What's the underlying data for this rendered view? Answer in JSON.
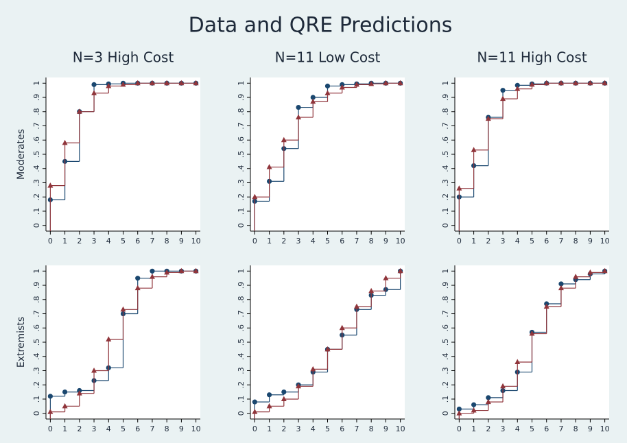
{
  "title": "Data and QRE Predictions",
  "chart_data": [
    {
      "type": "step",
      "title": "N=3 High Cost",
      "ylabel": "Moderates",
      "x": [
        0,
        1,
        2,
        3,
        4,
        5,
        6,
        7,
        8,
        9,
        10
      ],
      "xlim": [
        -0.3,
        10.3
      ],
      "xticks": [
        0,
        1,
        2,
        3,
        4,
        5,
        6,
        7,
        8,
        9,
        10
      ],
      "ylim": [
        -0.04,
        1.04
      ],
      "yticks": [
        0,
        {
          "value": 0.1,
          "label": ".1"
        },
        {
          "value": 0.2,
          "label": ".2"
        },
        {
          "value": 0.3,
          "label": ".3"
        },
        {
          "value": 0.4,
          "label": ".4"
        },
        {
          "value": 0.5,
          "label": ".5"
        },
        {
          "value": 0.6,
          "label": ".6"
        },
        {
          "value": 0.7,
          "label": ".7"
        },
        {
          "value": 0.8,
          "label": ".8"
        },
        {
          "value": 0.9,
          "label": ".9"
        },
        1
      ],
      "series": [
        {
          "color": "#1a476f",
          "marker": "circle",
          "values": [
            0.18,
            0.45,
            0.8,
            0.99,
            0.995,
            1,
            1,
            1,
            1,
            1,
            1
          ]
        },
        {
          "color": "#90353b",
          "marker": "triangle",
          "values": [
            0.28,
            0.58,
            0.8,
            0.93,
            0.98,
            0.99,
            1,
            1,
            1,
            1,
            1
          ]
        }
      ]
    },
    {
      "type": "step",
      "title": "N=11 Low Cost",
      "x": [
        0,
        1,
        2,
        3,
        4,
        5,
        6,
        7,
        8,
        9,
        10
      ],
      "xlim": [
        -0.3,
        10.3
      ],
      "xticks": [
        0,
        1,
        2,
        3,
        4,
        5,
        6,
        7,
        8,
        9,
        10
      ],
      "ylim": [
        -0.04,
        1.04
      ],
      "yticks": [
        0,
        {
          "value": 0.1,
          "label": ".1"
        },
        {
          "value": 0.2,
          "label": ".2"
        },
        {
          "value": 0.3,
          "label": ".3"
        },
        {
          "value": 0.4,
          "label": ".4"
        },
        {
          "value": 0.5,
          "label": ".5"
        },
        {
          "value": 0.6,
          "label": ".6"
        },
        {
          "value": 0.7,
          "label": ".7"
        },
        {
          "value": 0.8,
          "label": ".8"
        },
        {
          "value": 0.9,
          "label": ".9"
        },
        1
      ],
      "series": [
        {
          "color": "#1a476f",
          "marker": "circle",
          "values": [
            0.17,
            0.31,
            0.54,
            0.83,
            0.9,
            0.98,
            0.99,
            0.995,
            1,
            1,
            1
          ]
        },
        {
          "color": "#90353b",
          "marker": "triangle",
          "values": [
            0.2,
            0.41,
            0.6,
            0.76,
            0.87,
            0.93,
            0.97,
            0.99,
            0.995,
            1,
            1
          ]
        }
      ]
    },
    {
      "type": "step",
      "title": "N=11 High Cost",
      "x": [
        0,
        1,
        2,
        3,
        4,
        5,
        6,
        7,
        8,
        9,
        10
      ],
      "xlim": [
        -0.3,
        10.3
      ],
      "xticks": [
        0,
        1,
        2,
        3,
        4,
        5,
        6,
        7,
        8,
        9,
        10
      ],
      "ylim": [
        -0.04,
        1.04
      ],
      "yticks": [
        0,
        {
          "value": 0.1,
          "label": ".1"
        },
        {
          "value": 0.2,
          "label": ".2"
        },
        {
          "value": 0.3,
          "label": ".3"
        },
        {
          "value": 0.4,
          "label": ".4"
        },
        {
          "value": 0.5,
          "label": ".5"
        },
        {
          "value": 0.6,
          "label": ".6"
        },
        {
          "value": 0.7,
          "label": ".7"
        },
        {
          "value": 0.8,
          "label": ".8"
        },
        {
          "value": 0.9,
          "label": ".9"
        },
        1
      ],
      "series": [
        {
          "color": "#1a476f",
          "marker": "circle",
          "values": [
            0.2,
            0.42,
            0.76,
            0.95,
            0.985,
            0.995,
            1,
            1,
            1,
            1,
            1
          ]
        },
        {
          "color": "#90353b",
          "marker": "triangle",
          "values": [
            0.26,
            0.53,
            0.75,
            0.89,
            0.96,
            0.99,
            1,
            1,
            1,
            1,
            1
          ]
        }
      ]
    },
    {
      "type": "step",
      "ylabel": "Extremists",
      "x": [
        0,
        1,
        2,
        3,
        4,
        5,
        6,
        7,
        8,
        9,
        10
      ],
      "xlim": [
        -0.3,
        10.3
      ],
      "xticks": [
        0,
        1,
        2,
        3,
        4,
        5,
        6,
        7,
        8,
        9,
        10
      ],
      "ylim": [
        -0.04,
        1.04
      ],
      "yticks": [
        0,
        {
          "value": 0.1,
          "label": ".1"
        },
        {
          "value": 0.2,
          "label": ".2"
        },
        {
          "value": 0.3,
          "label": ".3"
        },
        {
          "value": 0.4,
          "label": ".4"
        },
        {
          "value": 0.5,
          "label": ".5"
        },
        {
          "value": 0.6,
          "label": ".6"
        },
        {
          "value": 0.7,
          "label": ".7"
        },
        {
          "value": 0.8,
          "label": ".8"
        },
        {
          "value": 0.9,
          "label": ".9"
        },
        1
      ],
      "series": [
        {
          "color": "#1a476f",
          "marker": "circle",
          "values": [
            0.12,
            0.15,
            0.16,
            0.23,
            0.32,
            0.7,
            0.95,
            1,
            1,
            1,
            1
          ]
        },
        {
          "color": "#90353b",
          "marker": "triangle",
          "values": [
            0.01,
            0.05,
            0.14,
            0.3,
            0.52,
            0.73,
            0.88,
            0.96,
            0.99,
            1,
            1
          ]
        }
      ]
    },
    {
      "type": "step",
      "x": [
        0,
        1,
        2,
        3,
        4,
        5,
        6,
        7,
        8,
        9,
        10
      ],
      "xlim": [
        -0.3,
        10.3
      ],
      "xticks": [
        0,
        1,
        2,
        3,
        4,
        5,
        6,
        7,
        8,
        9,
        10
      ],
      "ylim": [
        -0.04,
        1.04
      ],
      "yticks": [
        0,
        {
          "value": 0.1,
          "label": ".1"
        },
        {
          "value": 0.2,
          "label": ".2"
        },
        {
          "value": 0.3,
          "label": ".3"
        },
        {
          "value": 0.4,
          "label": ".4"
        },
        {
          "value": 0.5,
          "label": ".5"
        },
        {
          "value": 0.6,
          "label": ".6"
        },
        {
          "value": 0.7,
          "label": ".7"
        },
        {
          "value": 0.8,
          "label": ".8"
        },
        {
          "value": 0.9,
          "label": ".9"
        },
        1
      ],
      "series": [
        {
          "color": "#1a476f",
          "marker": "circle",
          "values": [
            0.08,
            0.13,
            0.15,
            0.2,
            0.29,
            0.45,
            0.55,
            0.73,
            0.83,
            0.87,
            1
          ]
        },
        {
          "color": "#90353b",
          "marker": "triangle",
          "values": [
            0.01,
            0.05,
            0.1,
            0.19,
            0.31,
            0.45,
            0.6,
            0.75,
            0.86,
            0.95,
            1
          ]
        }
      ]
    },
    {
      "type": "step",
      "x": [
        0,
        1,
        2,
        3,
        4,
        5,
        6,
        7,
        8,
        9,
        10
      ],
      "xlim": [
        -0.3,
        10.3
      ],
      "xticks": [
        0,
        1,
        2,
        3,
        4,
        5,
        6,
        7,
        8,
        9,
        10
      ],
      "ylim": [
        -0.04,
        1.04
      ],
      "yticks": [
        0,
        {
          "value": 0.1,
          "label": ".1"
        },
        {
          "value": 0.2,
          "label": ".2"
        },
        {
          "value": 0.3,
          "label": ".3"
        },
        {
          "value": 0.4,
          "label": ".4"
        },
        {
          "value": 0.5,
          "label": ".5"
        },
        {
          "value": 0.6,
          "label": ".6"
        },
        {
          "value": 0.7,
          "label": ".7"
        },
        {
          "value": 0.8,
          "label": ".8"
        },
        {
          "value": 0.9,
          "label": ".9"
        },
        1
      ],
      "series": [
        {
          "color": "#1a476f",
          "marker": "circle",
          "values": [
            0.03,
            0.06,
            0.11,
            0.16,
            0.29,
            0.57,
            0.77,
            0.91,
            0.94,
            0.98,
            1
          ]
        },
        {
          "color": "#90353b",
          "marker": "triangle",
          "values": [
            0.0,
            0.02,
            0.08,
            0.19,
            0.36,
            0.56,
            0.75,
            0.88,
            0.96,
            0.99,
            1
          ]
        }
      ]
    }
  ]
}
